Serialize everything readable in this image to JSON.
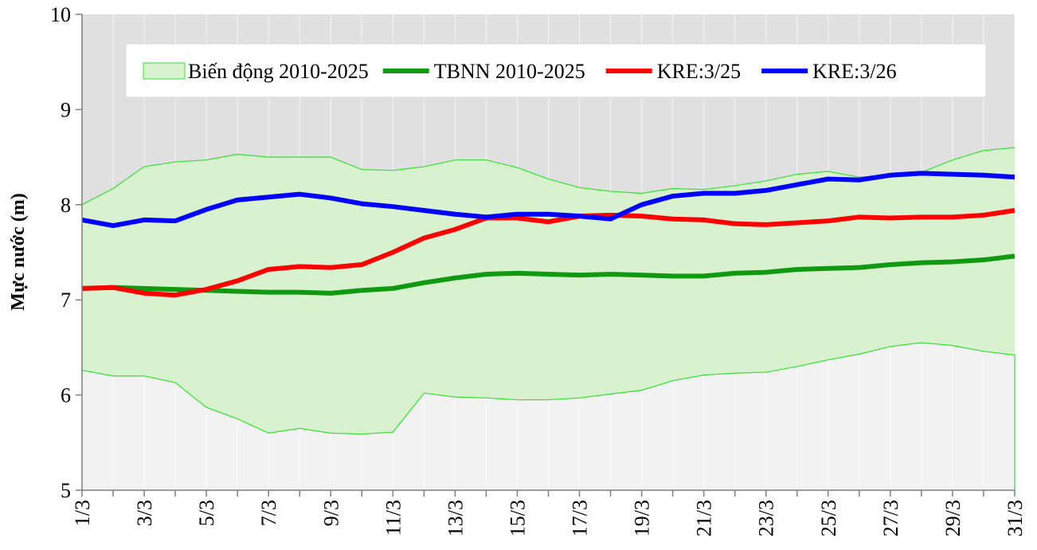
{
  "chart_data": {
    "type": "line",
    "ylabel": "Mực nước (m)",
    "categories": [
      "1/3",
      null,
      "3/3",
      null,
      "5/3",
      null,
      "7/3",
      null,
      "9/3",
      null,
      "11/3",
      null,
      "13/3",
      null,
      "15/3",
      null,
      "17/3",
      null,
      "19/3",
      null,
      "21/3",
      null,
      "23/3",
      null,
      "25/3",
      null,
      "27/3",
      null,
      "29/3",
      null,
      "31/3"
    ],
    "ylim": [
      5,
      10
    ],
    "yticks": [
      5,
      6,
      7,
      8,
      9,
      10
    ],
    "legend": "top",
    "band": {
      "name": "Biến động 2010-2025",
      "color": "#33e033",
      "fill": "#d8f2d0",
      "upper": [
        8.0,
        8.17,
        8.4,
        8.45,
        8.47,
        8.53,
        8.5,
        8.5,
        8.5,
        8.37,
        8.36,
        8.4,
        8.47,
        8.47,
        8.39,
        8.27,
        8.18,
        8.14,
        8.12,
        8.17,
        8.16,
        8.2,
        8.25,
        8.32,
        8.35,
        8.29,
        8.31,
        8.34,
        8.47,
        8.57,
        8.6
      ],
      "lower": [
        6.26,
        6.2,
        6.2,
        6.13,
        5.87,
        5.75,
        5.6,
        5.65,
        5.6,
        5.59,
        5.61,
        6.02,
        5.98,
        5.97,
        5.95,
        5.95,
        5.97,
        6.01,
        6.05,
        6.15,
        6.21,
        6.23,
        6.24,
        6.3,
        6.37,
        6.43,
        6.51,
        6.55,
        6.52,
        6.46,
        6.42
      ]
    },
    "series": [
      {
        "name": "TBNN 2010-2025",
        "color": "#119911",
        "values": [
          7.12,
          7.13,
          7.12,
          7.11,
          7.1,
          7.09,
          7.08,
          7.08,
          7.07,
          7.1,
          7.12,
          7.18,
          7.23,
          7.27,
          7.28,
          7.27,
          7.26,
          7.27,
          7.26,
          7.25,
          7.25,
          7.28,
          7.29,
          7.32,
          7.33,
          7.34,
          7.37,
          7.39,
          7.4,
          7.42,
          7.46
        ]
      },
      {
        "name": "KRE:3/25",
        "color": "#ff0000",
        "values": [
          7.12,
          7.13,
          7.07,
          7.05,
          7.11,
          7.2,
          7.32,
          7.35,
          7.34,
          7.37,
          7.5,
          7.65,
          7.74,
          7.86,
          7.86,
          7.82,
          7.88,
          7.89,
          7.88,
          7.85,
          7.84,
          7.8,
          7.79,
          7.81,
          7.83,
          7.87,
          7.86,
          7.87,
          7.87,
          7.89,
          7.94
        ]
      },
      {
        "name": "KRE:3/26",
        "color": "#0000ff",
        "values": [
          7.84,
          7.78,
          7.84,
          7.83,
          7.95,
          8.05,
          8.08,
          8.11,
          8.07,
          8.01,
          7.98,
          7.94,
          7.9,
          7.87,
          7.9,
          7.9,
          7.88,
          7.85,
          8.0,
          8.09,
          8.12,
          8.12,
          8.15,
          8.21,
          8.27,
          8.26,
          8.31,
          8.33,
          8.32,
          8.31,
          8.29
        ]
      }
    ]
  }
}
